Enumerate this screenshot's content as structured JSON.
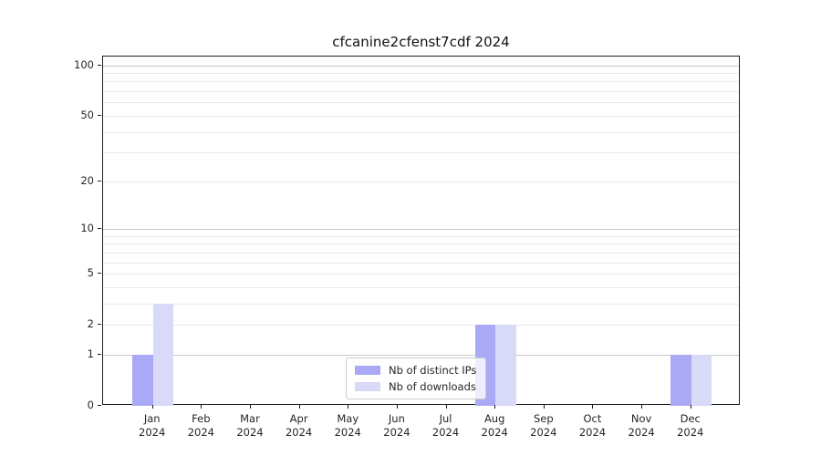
{
  "chart_data": {
    "type": "bar",
    "title": "cfcanine2cfenst7cdf 2024",
    "categories": [
      "Jan",
      "Feb",
      "Mar",
      "Apr",
      "May",
      "Jun",
      "Jul",
      "Aug",
      "Sep",
      "Oct",
      "Nov",
      "Dec"
    ],
    "year": "2024",
    "series": [
      {
        "name": "Nb of distinct IPs",
        "color": "#a9a9f6",
        "values": [
          1,
          0,
          0,
          0,
          0,
          0,
          0,
          2,
          0,
          0,
          0,
          1
        ]
      },
      {
        "name": "Nb of downloads",
        "color": "#d9d9f8",
        "values": [
          3,
          0,
          0,
          0,
          0,
          0,
          0,
          2,
          0,
          0,
          0,
          1
        ]
      }
    ],
    "y_axis": {
      "scale": "log1p",
      "tick_labels": [
        0,
        1,
        2,
        5,
        10,
        20,
        50,
        100
      ],
      "major_gridlines": [
        1,
        10,
        100
      ],
      "minor_gridlines": [
        2,
        3,
        4,
        5,
        6,
        7,
        8,
        9,
        20,
        30,
        40,
        50,
        60,
        70,
        80,
        90
      ],
      "range": [
        0,
        111
      ]
    },
    "x_axis": {
      "label_format": "month over year"
    },
    "grid": true,
    "legend_position": "lower center"
  },
  "colors": {
    "major_grid": "#c9c9c9",
    "minor_grid": "#eaeaea",
    "axis": "#1c1c1c",
    "text": "#262626",
    "background": "#ffffff"
  }
}
